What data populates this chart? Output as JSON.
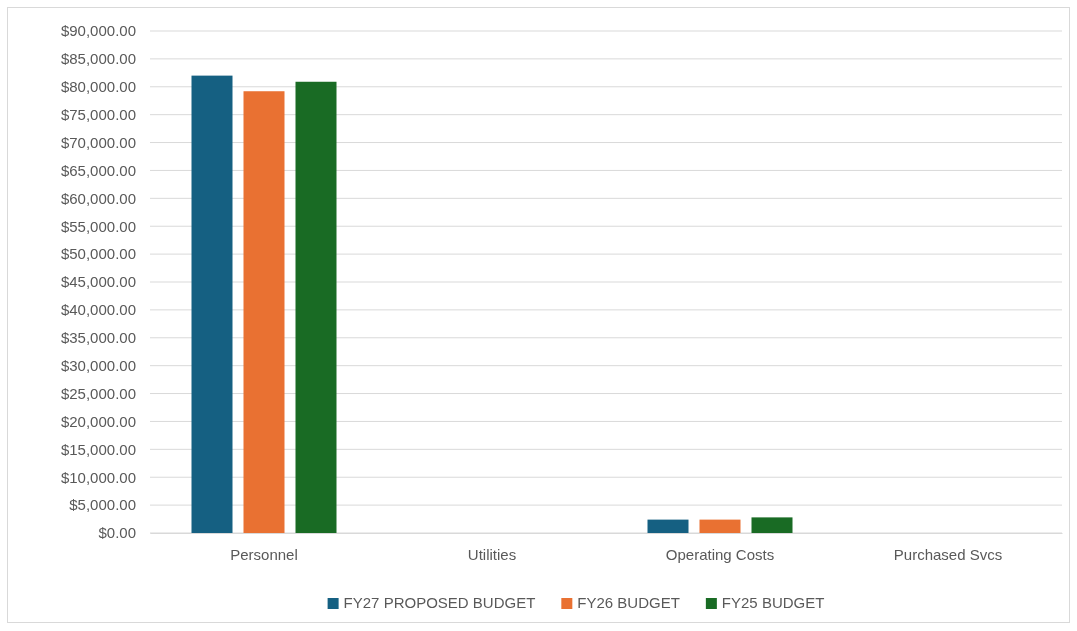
{
  "chart_data": {
    "type": "bar",
    "categories": [
      "Personnel",
      "Utilities",
      "Operating Costs",
      "Purchased Svcs"
    ],
    "series": [
      {
        "name": "FY27 PROPOSED BUDGET",
        "color": "#156082",
        "values": [
          82000,
          0,
          2400,
          0
        ]
      },
      {
        "name": "FY26 BUDGET",
        "color": "#e97132",
        "values": [
          79200,
          0,
          2400,
          0
        ]
      },
      {
        "name": "FY25 BUDGET",
        "color": "#196b24",
        "values": [
          80900,
          0,
          2800,
          0
        ]
      }
    ],
    "ylim": [
      0,
      90000
    ],
    "yticks": [
      {
        "value": 0,
        "label": "$0.00"
      },
      {
        "value": 5000,
        "label": "$5,000.00"
      },
      {
        "value": 10000,
        "label": "$10,000.00"
      },
      {
        "value": 15000,
        "label": "$15,000.00"
      },
      {
        "value": 20000,
        "label": "$20,000.00"
      },
      {
        "value": 25000,
        "label": "$25,000.00"
      },
      {
        "value": 30000,
        "label": "$30,000.00"
      },
      {
        "value": 35000,
        "label": "$35,000.00"
      },
      {
        "value": 40000,
        "label": "$40,000.00"
      },
      {
        "value": 45000,
        "label": "$45,000.00"
      },
      {
        "value": 50000,
        "label": "$50,000.00"
      },
      {
        "value": 55000,
        "label": "$55,000.00"
      },
      {
        "value": 60000,
        "label": "$60,000.00"
      },
      {
        "value": 65000,
        "label": "$65,000.00"
      },
      {
        "value": 70000,
        "label": "$70,000.00"
      },
      {
        "value": 75000,
        "label": "$75,000.00"
      },
      {
        "value": 80000,
        "label": "$80,000.00"
      },
      {
        "value": 85000,
        "label": "$85,000.00"
      },
      {
        "value": 90000,
        "label": "$90,000.00"
      }
    ],
    "grid": "y",
    "legend": "bottom"
  }
}
